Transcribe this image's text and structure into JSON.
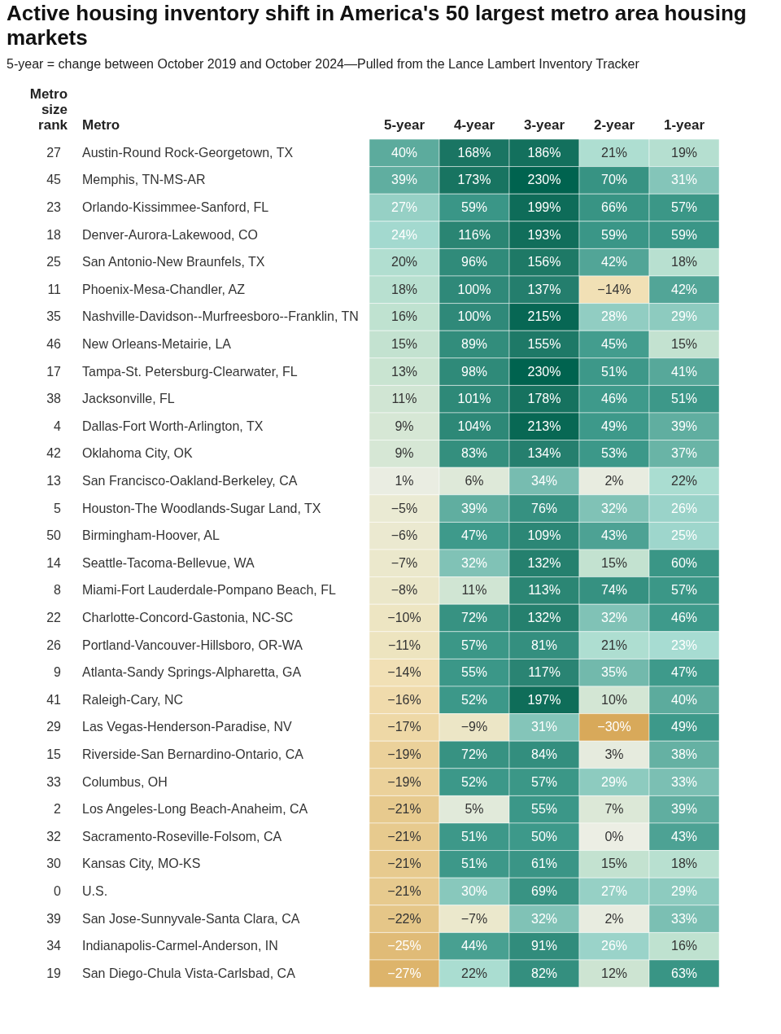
{
  "chart_data": {
    "type": "heatmap",
    "title": "Active housing inventory shift in America's 50 largest metro area housing markets",
    "subtitle": "5-year = change between October 2019 and October 2024—Pulled from the Lance Lambert Inventory Tracker",
    "ylabel": "Metro",
    "y2label": "Metro size rank",
    "categories": [
      "5-year",
      "4-year",
      "3-year",
      "2-year",
      "1-year"
    ],
    "y_categories": [
      "Austin-Round Rock-Georgetown, TX",
      "Memphis, TN-MS-AR",
      "Orlando-Kissimmee-Sanford, FL",
      "Denver-Aurora-Lakewood, CO",
      "San Antonio-New Braunfels, TX",
      "Phoenix-Mesa-Chandler, AZ",
      "Nashville-Davidson--Murfreesboro--Franklin, TN",
      "New Orleans-Metairie, LA",
      "Tampa-St. Petersburg-Clearwater, FL",
      "Jacksonville, FL",
      "Dallas-Fort Worth-Arlington, TX",
      "Oklahoma City, OK",
      "San Francisco-Oakland-Berkeley, CA",
      "Houston-The Woodlands-Sugar Land, TX",
      "Birmingham-Hoover, AL",
      "Seattle-Tacoma-Bellevue, WA",
      "Miami-Fort Lauderdale-Pompano Beach, FL",
      "Charlotte-Concord-Gastonia, NC-SC",
      "Portland-Vancouver-Hillsboro, OR-WA",
      "Atlanta-Sandy Springs-Alpharetta, GA",
      "Raleigh-Cary, NC",
      "Las Vegas-Henderson-Paradise, NV",
      "Riverside-San Bernardino-Ontario, CA",
      "Columbus, OH",
      "Los Angeles-Long Beach-Anaheim, CA",
      "Sacramento-Roseville-Folsom, CA",
      "Kansas City, MO-KS",
      "U.S.",
      "San Jose-Sunnyvale-Santa Clara, CA",
      "Indianapolis-Carmel-Anderson, IN",
      "San Diego-Chula Vista-Carlsbad, CA"
    ],
    "y2_categories": [
      "27",
      "45",
      "23",
      "18",
      "25",
      "11",
      "35",
      "46",
      "17",
      "38",
      "4",
      "42",
      "13",
      "5",
      "50",
      "14",
      "8",
      "22",
      "26",
      "9",
      "41",
      "29",
      "15",
      "33",
      "2",
      "32",
      "30",
      "0",
      "39",
      "34",
      "19"
    ],
    "cells": [
      [
        40,
        168,
        186,
        21,
        19
      ],
      [
        39,
        173,
        230,
        70,
        31
      ],
      [
        27,
        59,
        199,
        66,
        57
      ],
      [
        24,
        116,
        193,
        59,
        59
      ],
      [
        20,
        96,
        156,
        42,
        18
      ],
      [
        18,
        100,
        137,
        -14,
        42
      ],
      [
        16,
        100,
        215,
        28,
        29
      ],
      [
        15,
        89,
        155,
        45,
        15
      ],
      [
        13,
        98,
        230,
        51,
        41
      ],
      [
        11,
        101,
        178,
        46,
        51
      ],
      [
        9,
        104,
        213,
        49,
        39
      ],
      [
        9,
        83,
        134,
        53,
        37
      ],
      [
        1,
        6,
        34,
        2,
        22
      ],
      [
        -5,
        39,
        76,
        32,
        26
      ],
      [
        -6,
        47,
        109,
        43,
        25
      ],
      [
        -7,
        32,
        132,
        15,
        60
      ],
      [
        -8,
        11,
        113,
        74,
        57
      ],
      [
        -10,
        72,
        132,
        32,
        46
      ],
      [
        -11,
        57,
        81,
        21,
        23
      ],
      [
        -14,
        55,
        117,
        35,
        47
      ],
      [
        -16,
        52,
        197,
        10,
        40
      ],
      [
        -17,
        -9,
        31,
        -30,
        49
      ],
      [
        -19,
        72,
        84,
        3,
        38
      ],
      [
        -19,
        52,
        57,
        29,
        33
      ],
      [
        -21,
        5,
        55,
        7,
        39
      ],
      [
        -21,
        51,
        50,
        0,
        43
      ],
      [
        -21,
        51,
        61,
        15,
        18
      ],
      [
        -21,
        30,
        69,
        27,
        29
      ],
      [
        -22,
        -7,
        32,
        2,
        33
      ],
      [
        -25,
        44,
        91,
        26,
        16
      ],
      [
        -27,
        22,
        82,
        12,
        63
      ]
    ],
    "cell_labels": [
      [
        "40%",
        "168%",
        "186%",
        "21%",
        "19%"
      ],
      [
        "39%",
        "173%",
        "230%",
        "70%",
        "31%"
      ],
      [
        "27%",
        "59%",
        "199%",
        "66%",
        "57%"
      ],
      [
        "24%",
        "116%",
        "193%",
        "59%",
        "59%"
      ],
      [
        "20%",
        "96%",
        "156%",
        "42%",
        "18%"
      ],
      [
        "18%",
        "100%",
        "137%",
        "−14%",
        "42%"
      ],
      [
        "16%",
        "100%",
        "215%",
        "28%",
        "29%"
      ],
      [
        "15%",
        "89%",
        "155%",
        "45%",
        "15%"
      ],
      [
        "13%",
        "98%",
        "230%",
        "51%",
        "41%"
      ],
      [
        "11%",
        "101%",
        "178%",
        "46%",
        "51%"
      ],
      [
        "9%",
        "104%",
        "213%",
        "49%",
        "39%"
      ],
      [
        "9%",
        "83%",
        "134%",
        "53%",
        "37%"
      ],
      [
        "1%",
        "6%",
        "34%",
        "2%",
        "22%"
      ],
      [
        "−5%",
        "39%",
        "76%",
        "32%",
        "26%"
      ],
      [
        "−6%",
        "47%",
        "109%",
        "43%",
        "25%"
      ],
      [
        "−7%",
        "32%",
        "132%",
        "15%",
        "60%"
      ],
      [
        "−8%",
        "11%",
        "113%",
        "74%",
        "57%"
      ],
      [
        "−10%",
        "72%",
        "132%",
        "32%",
        "46%"
      ],
      [
        "−11%",
        "57%",
        "81%",
        "21%",
        "23%"
      ],
      [
        "−14%",
        "55%",
        "117%",
        "35%",
        "47%"
      ],
      [
        "−16%",
        "52%",
        "197%",
        "10%",
        "40%"
      ],
      [
        "−17%",
        "−9%",
        "31%",
        "−30%",
        "49%"
      ],
      [
        "−19%",
        "72%",
        "84%",
        "3%",
        "38%"
      ],
      [
        "−19%",
        "52%",
        "57%",
        "29%",
        "33%"
      ],
      [
        "−21%",
        "5%",
        "55%",
        "7%",
        "39%"
      ],
      [
        "−21%",
        "51%",
        "50%",
        "0%",
        "43%"
      ],
      [
        "−21%",
        "51%",
        "61%",
        "15%",
        "18%"
      ],
      [
        "−21%",
        "30%",
        "69%",
        "27%",
        "29%"
      ],
      [
        "−22%",
        "−7%",
        "32%",
        "2%",
        "33%"
      ],
      [
        "−25%",
        "44%",
        "91%",
        "26%",
        "16%"
      ],
      [
        "−27%",
        "22%",
        "82%",
        "12%",
        "63%"
      ]
    ]
  }
}
